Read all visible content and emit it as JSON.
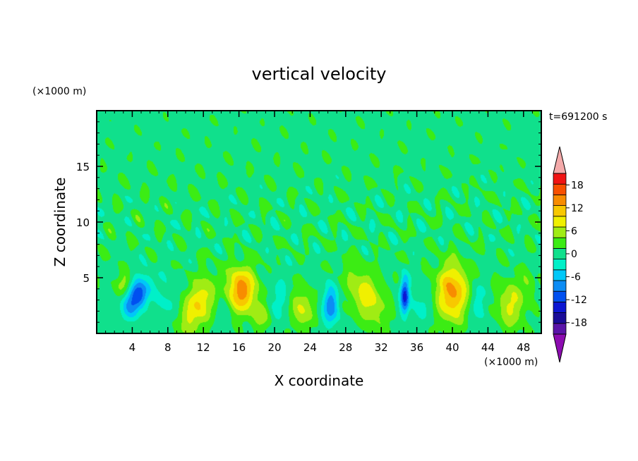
{
  "chart_data": {
    "type": "heatmap",
    "title": "vertical velocity",
    "xlabel": "X coordinate",
    "ylabel": "Z coordinate",
    "x_unit": "(×1000 m)",
    "y_unit": "(×1000 m)",
    "time_label": "t=691200 s",
    "xlim": [
      0,
      50
    ],
    "ylim": [
      0,
      20
    ],
    "x_ticks": [
      4,
      8,
      12,
      16,
      20,
      24,
      28,
      32,
      36,
      40,
      44,
      48
    ],
    "y_ticks": [
      5,
      10,
      15
    ],
    "colorbar": {
      "levels": [
        -21,
        -18,
        -15,
        -12,
        -9,
        -6,
        -3,
        0,
        3,
        6,
        9,
        12,
        15,
        18,
        21
      ],
      "tick_labels": [
        -18,
        -12,
        -6,
        0,
        6,
        12,
        18
      ],
      "colors": [
        "#5a14a8",
        "#1a0c98",
        "#0c16d2",
        "#0050f0",
        "#0c8cf4",
        "#00c8f8",
        "#00f0c8",
        "#10e08c",
        "#3cec14",
        "#a0ec14",
        "#f0f000",
        "#f8c800",
        "#f88c00",
        "#f85000",
        "#f01414"
      ],
      "under_color": "#8c0cb0",
      "over_color": "#f4aaaa"
    },
    "features": [
      {
        "x": 4.5,
        "z": 3.3,
        "sx": 0.9,
        "sz": 1.2,
        "w": -13,
        "tilt": 0.4
      },
      {
        "x": 3.0,
        "z": 4.5,
        "sx": 0.6,
        "sz": 0.7,
        "w": 5
      },
      {
        "x": 11.5,
        "z": 2.6,
        "sx": 1.4,
        "sz": 1.8,
        "w": 9,
        "tilt": 0.45
      },
      {
        "x": 16.2,
        "z": 3.9,
        "sx": 1.2,
        "sz": 1.4,
        "w": 14
      },
      {
        "x": 18.5,
        "z": 1.6,
        "sx": 0.7,
        "sz": 0.9,
        "w": 5
      },
      {
        "x": 14.0,
        "z": 3.0,
        "sx": 0.8,
        "sz": 1.8,
        "w": -4
      },
      {
        "x": 23.0,
        "z": 2.3,
        "sx": 0.9,
        "sz": 1.3,
        "w": 7
      },
      {
        "x": 26.3,
        "z": 2.5,
        "sx": 0.6,
        "sz": 1.2,
        "w": -10
      },
      {
        "x": 30.3,
        "z": 3.4,
        "sx": 1.3,
        "sz": 1.8,
        "w": 8,
        "tilt": -0.4
      },
      {
        "x": 34.6,
        "z": 3.4,
        "sx": 0.35,
        "sz": 1.1,
        "w": -14
      },
      {
        "x": 36.5,
        "z": 2.7,
        "sx": 1.0,
        "sz": 1.2,
        "w": -3
      },
      {
        "x": 40.0,
        "z": 3.7,
        "sx": 1.3,
        "sz": 1.8,
        "w": 13
      },
      {
        "x": 42.7,
        "z": 2.8,
        "sx": 0.9,
        "sz": 1.3,
        "w": -4
      },
      {
        "x": 46.5,
        "z": 2.6,
        "sx": 1.1,
        "sz": 1.5,
        "w": 7
      },
      {
        "x": 8.0,
        "z": 2.8,
        "sx": 0.9,
        "sz": 1.5,
        "w": -3
      },
      {
        "x": 20.5,
        "z": 3.0,
        "sx": 1.0,
        "sz": 1.5,
        "w": -3
      },
      {
        "x": 48.5,
        "z": 4.5,
        "sx": 0.6,
        "sz": 0.8,
        "w": 3
      }
    ]
  }
}
